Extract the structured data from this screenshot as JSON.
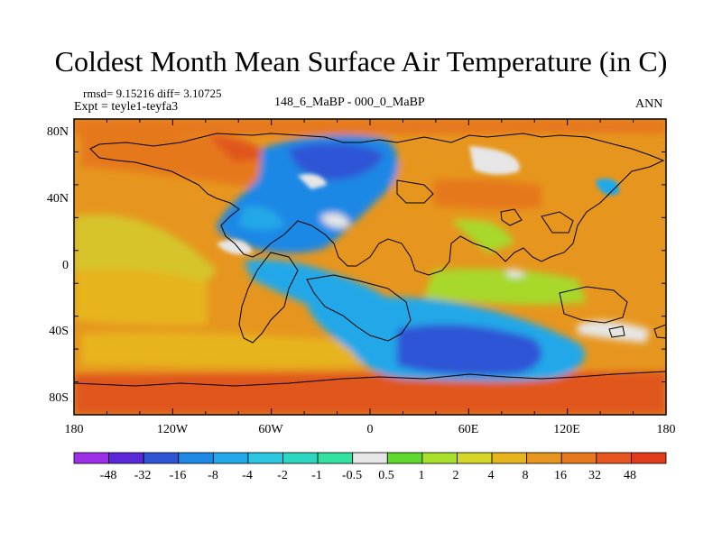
{
  "title": "Coldest Month Mean Surface Air Temperature (in C)",
  "stats": "rmsd= 9.15216 diff= 3.10725",
  "experiment": "Expt = teyle1-teyfa3",
  "period": "148_6_MaBP - 000_0_MaBP",
  "season": "ANN",
  "map_data": {
    "projection": "cylindrical equidistant",
    "x_ticks": [
      "180",
      "120W",
      "60W",
      "0",
      "60E",
      "120E",
      "180"
    ],
    "y_ticks": [
      "80N",
      "40N",
      "0",
      "40S",
      "80S"
    ],
    "x_range": [
      -180,
      180
    ],
    "y_range": [
      -90,
      90
    ]
  },
  "colorbar": {
    "labels": [
      "-48",
      "-32",
      "-16",
      "-8",
      "-4",
      "-2",
      "-1",
      "-0.5",
      "0.5",
      "1",
      "2",
      "4",
      "8",
      "16",
      "32",
      "48"
    ],
    "colors": [
      "#9b30e6",
      "#5a28d8",
      "#2e55d6",
      "#1e88e5",
      "#22a8e8",
      "#2cc6e0",
      "#2dd6c0",
      "#32e0a0",
      "#e6e6e6",
      "#5ed82e",
      "#a8e02c",
      "#d6d62a",
      "#e6b41e",
      "#e6961e",
      "#e6781e",
      "#e6561e",
      "#e03c1c"
    ]
  }
}
